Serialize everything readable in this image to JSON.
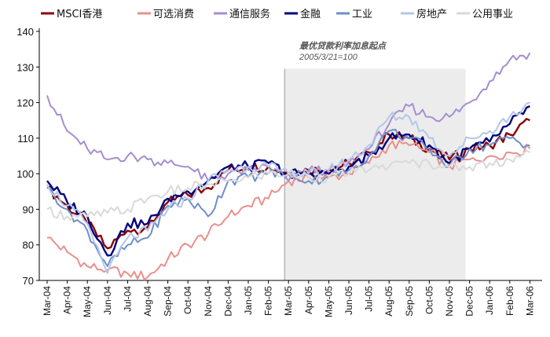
{
  "chart_data": {
    "type": "line",
    "title": "",
    "xlabel": "",
    "ylabel": "",
    "ylim": [
      70,
      140
    ],
    "yticks": [
      70,
      80,
      90,
      100,
      110,
      120,
      130,
      140
    ],
    "x_tick_labels": [
      "Mar-04",
      "Apr-04",
      "May-04",
      "Jun-04",
      "Jul-04",
      "Aug-04",
      "Sep-04",
      "Oct-04",
      "Nov-04",
      "Dec-04",
      "Jan-05",
      "Feb-05",
      "Mar-05",
      "Apr-05",
      "May-05",
      "Jun-05",
      "Jul-05",
      "Aug-05",
      "Sep-05",
      "Oct-05",
      "Nov-05",
      "Dec-05",
      "Jan-06",
      "Feb-06",
      "Mar-06"
    ],
    "grid": false,
    "legend_position": "top",
    "annotation": {
      "title": "最优贷款利率加息起点",
      "subtitle": "2005/3/21=100",
      "shaded_from": "Mar-05",
      "shaded_to": "Dec-05"
    },
    "x": [
      "Mar-04",
      "Apr-04",
      "May-04",
      "Jun-04",
      "Jul-04",
      "Aug-04",
      "Sep-04",
      "Oct-04",
      "Nov-04",
      "Dec-04",
      "Jan-05",
      "Feb-05",
      "Mar-05",
      "Apr-05",
      "May-05",
      "Jun-05",
      "Jul-05",
      "Aug-05",
      "Sep-05",
      "Oct-05",
      "Nov-05",
      "Dec-05",
      "Jan-06",
      "Feb-06",
      "Mar-06"
    ],
    "series": [
      {
        "name": "MSCI香港",
        "color": "#8b0000",
        "values": [
          96,
          91,
          86,
          79,
          84,
          85,
          92,
          94,
          96,
          101,
          102,
          102,
          100,
          101,
          101,
          103,
          106,
          111,
          110,
          107,
          104,
          107,
          108,
          111,
          115
        ]
      },
      {
        "name": "可选消费",
        "color": "#e8908e",
        "values": [
          82,
          78,
          74,
          73,
          72,
          71,
          76,
          80,
          83,
          88,
          91,
          93,
          98,
          99,
          99,
          100,
          103,
          108,
          108,
          106,
          102,
          104,
          105,
          106,
          107
        ]
      },
      {
        "name": "通信服务",
        "color": "#a58ecf",
        "values": [
          122,
          112,
          107,
          104,
          105,
          104,
          103,
          102,
          98,
          100,
          101,
          102,
          98,
          101,
          101,
          103,
          107,
          114,
          119,
          116,
          116,
          120,
          126,
          132,
          134
        ]
      },
      {
        "name": "金融",
        "color": "#000080",
        "values": [
          98,
          92,
          88,
          77,
          86,
          86,
          93,
          95,
          98,
          102,
          102,
          103,
          100,
          100,
          100,
          102,
          105,
          110,
          111,
          108,
          103,
          107,
          109,
          114,
          119
        ]
      },
      {
        "name": "工业",
        "color": "#6e8ec9",
        "values": [
          96,
          90,
          84,
          74,
          80,
          82,
          91,
          93,
          88,
          98,
          99,
          100,
          100,
          98,
          99,
          101,
          105,
          112,
          110,
          107,
          102,
          107,
          108,
          110,
          108
        ]
      },
      {
        "name": "房地产",
        "color": "#b4c7e7",
        "values": [
          97,
          91,
          86,
          72,
          82,
          84,
          90,
          93,
          98,
          101,
          102,
          102,
          100,
          100,
          101,
          104,
          108,
          116,
          116,
          110,
          105,
          110,
          112,
          116,
          120
        ]
      },
      {
        "name": "公用事业",
        "color": "#d9d9d9",
        "values": [
          90,
          88,
          88,
          89,
          90,
          93,
          95,
          96,
          97,
          98,
          99,
          100,
          100,
          99,
          99,
          100,
          101,
          102,
          103,
          103,
          102,
          102,
          103,
          104,
          106
        ]
      }
    ]
  }
}
